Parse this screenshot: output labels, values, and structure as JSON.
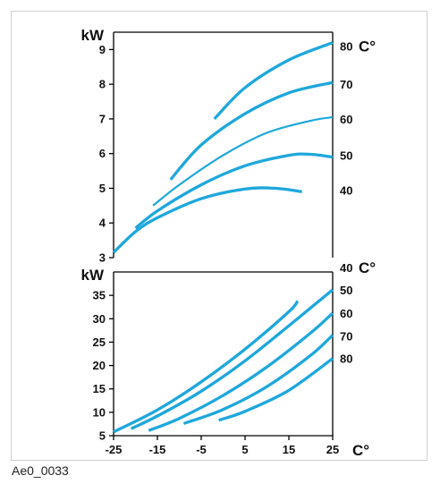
{
  "figure_id": "Ae0_0033",
  "colors": {
    "curve": "#1ea7dc",
    "axis": "#000000",
    "frame": "#cfcfcf"
  },
  "chart_data": [
    {
      "type": "line",
      "ylabel": "kW",
      "right_axis_label": "C°",
      "ylim": [
        3,
        9.5
      ],
      "xlim": [
        -25,
        25
      ],
      "y_ticks": [
        3,
        4,
        5,
        6,
        7,
        8,
        9
      ],
      "grid": false,
      "series": [
        {
          "name": "80",
          "points": [
            [
              -2,
              7.0
            ],
            [
              5,
              7.9
            ],
            [
              15,
              8.7
            ],
            [
              25,
              9.2
            ]
          ]
        },
        {
          "name": "70",
          "points": [
            [
              -12,
              5.25
            ],
            [
              -5,
              6.25
            ],
            [
              5,
              7.15
            ],
            [
              15,
              7.75
            ],
            [
              25,
              8.05
            ]
          ]
        },
        {
          "name": "60",
          "points": [
            [
              -16,
              4.5
            ],
            [
              -10,
              5.1
            ],
            [
              0,
              5.95
            ],
            [
              10,
              6.6
            ],
            [
              20,
              6.95
            ],
            [
              25,
              7.05
            ]
          ]
        },
        {
          "name": "50",
          "points": [
            [
              -20,
              3.85
            ],
            [
              -15,
              4.35
            ],
            [
              -5,
              5.1
            ],
            [
              5,
              5.65
            ],
            [
              15,
              5.95
            ],
            [
              20,
              5.98
            ],
            [
              25,
              5.9
            ]
          ]
        },
        {
          "name": "40",
          "points": [
            [
              -25,
              3.15
            ],
            [
              -20,
              3.75
            ],
            [
              -15,
              4.15
            ],
            [
              -5,
              4.7
            ],
            [
              5,
              4.98
            ],
            [
              12,
              5.0
            ],
            [
              18,
              4.9
            ]
          ]
        }
      ],
      "right_labels": [
        {
          "text": "80",
          "y": 9.1
        },
        {
          "text": "70",
          "y": 8.0
        },
        {
          "text": "60",
          "y": 7.0
        },
        {
          "text": "50",
          "y": 5.95
        },
        {
          "text": "40",
          "y": 4.95
        }
      ]
    },
    {
      "type": "line",
      "ylabel": "kW",
      "xlabel": "C°",
      "right_axis_label": "C°",
      "ylim": [
        5,
        40
      ],
      "xlim": [
        -25,
        25
      ],
      "y_ticks": [
        5,
        10,
        15,
        20,
        25,
        30,
        35
      ],
      "x_ticks": [
        -25,
        -15,
        -5,
        5,
        15,
        25
      ],
      "grid": false,
      "series": [
        {
          "name": "40",
          "points": [
            [
              -25,
              5.8
            ],
            [
              -15,
              10.5
            ],
            [
              -5,
              16.5
            ],
            [
              5,
              23.5
            ],
            [
              15,
              31.5
            ],
            [
              17,
              33.8
            ]
          ]
        },
        {
          "name": "50",
          "points": [
            [
              -21,
              6.5
            ],
            [
              -15,
              9.2
            ],
            [
              -5,
              14.5
            ],
            [
              5,
              21.0
            ],
            [
              15,
              28.5
            ],
            [
              25,
              36.2
            ]
          ]
        },
        {
          "name": "60",
          "points": [
            [
              -17,
              6.1
            ],
            [
              -10,
              8.7
            ],
            [
              0,
              13.6
            ],
            [
              10,
              19.7
            ],
            [
              20,
              27.0
            ],
            [
              25,
              31.2
            ]
          ]
        },
        {
          "name": "70",
          "points": [
            [
              -9,
              7.6
            ],
            [
              0,
              10.6
            ],
            [
              10,
              15.5
            ],
            [
              20,
              22.2
            ],
            [
              25,
              26.5
            ]
          ]
        },
        {
          "name": "80",
          "points": [
            [
              -1,
              8.3
            ],
            [
              5,
              10.2
            ],
            [
              15,
              14.7
            ],
            [
              25,
              21.5
            ]
          ]
        }
      ],
      "right_labels": [
        {
          "text": "40",
          "y": 41
        },
        {
          "text": "50",
          "y": 36.2
        },
        {
          "text": "60",
          "y": 31.2
        },
        {
          "text": "70",
          "y": 26.3
        },
        {
          "text": "80",
          "y": 21.5
        }
      ]
    }
  ]
}
